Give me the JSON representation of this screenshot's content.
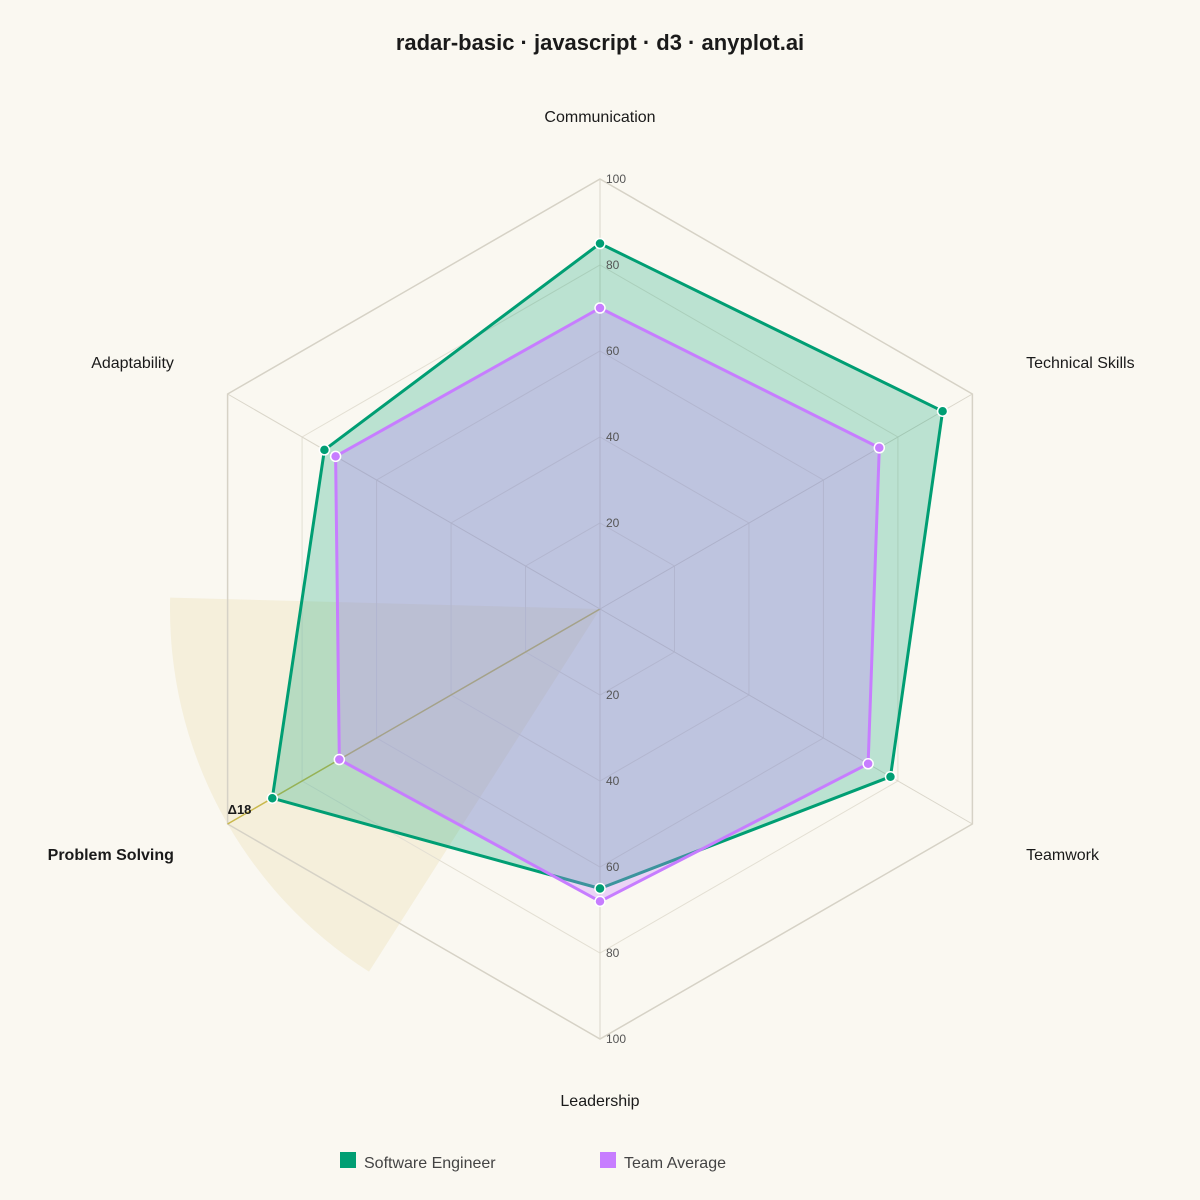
{
  "title": "radar-basic · javascript · d3 · anyplot.ai",
  "chart_data": {
    "type": "radar",
    "axes": [
      "Communication",
      "Technical Skills",
      "Teamwork",
      "Leadership",
      "Problem Solving",
      "Adaptability"
    ],
    "emphasized_axis": "Problem Solving",
    "range": [
      0,
      100
    ],
    "ticks": [
      20,
      40,
      60,
      80,
      100
    ],
    "grid": true,
    "series": [
      {
        "name": "Software Engineer",
        "color": "#009E73",
        "values": [
          85,
          92,
          78,
          65,
          88,
          74
        ]
      },
      {
        "name": "Team Average",
        "color": "#C77DFF",
        "values": [
          70,
          75,
          72,
          68,
          70,
          71
        ]
      }
    ],
    "annotation": {
      "axis": "Problem Solving",
      "text": "Δ18",
      "color": "#C9B84C"
    },
    "legend": {
      "placement": "bottom-center"
    }
  }
}
